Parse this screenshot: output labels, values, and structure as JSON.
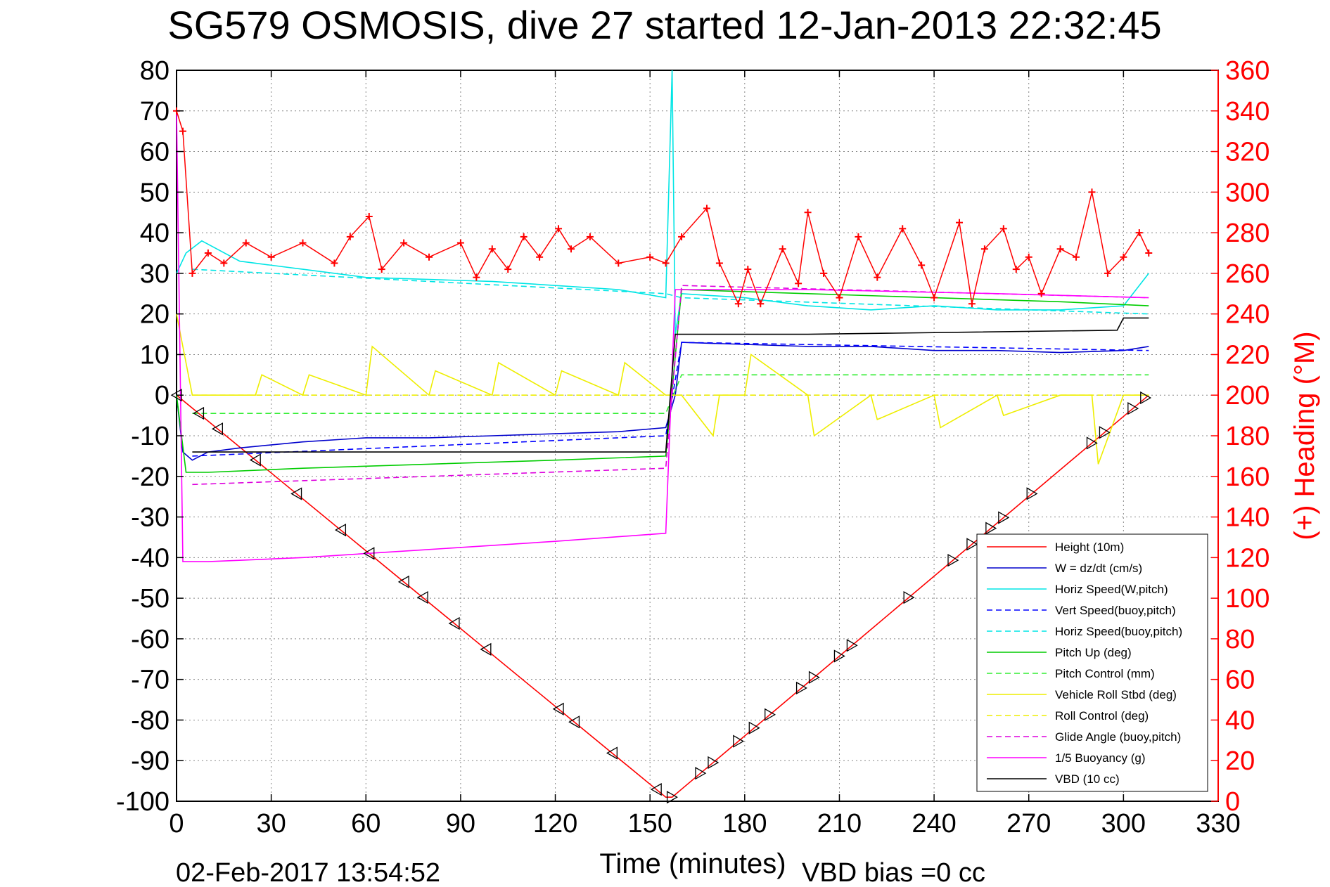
{
  "chart_data": {
    "type": "line",
    "title": "SG579 OSMOSIS, dive 27 started 12-Jan-2013 22:32:45",
    "xlabel": "Time (minutes)",
    "ylabel": "",
    "y2label": "(+) Heading (°M)",
    "xlim": [
      0,
      330
    ],
    "ylim": [
      -100,
      80
    ],
    "y2lim": [
      0,
      360
    ],
    "xticks": [
      0,
      30,
      60,
      90,
      120,
      150,
      180,
      210,
      240,
      270,
      300,
      330
    ],
    "yticks": [
      -100,
      -90,
      -80,
      -70,
      -60,
      -50,
      -40,
      -30,
      -20,
      -10,
      0,
      10,
      20,
      30,
      40,
      50,
      60,
      70,
      80
    ],
    "y2ticks": [
      0,
      20,
      40,
      60,
      80,
      100,
      120,
      140,
      160,
      180,
      200,
      220,
      240,
      260,
      280,
      300,
      320,
      340,
      360
    ],
    "grid": true,
    "legend_position": "bottom-right",
    "timestamp": "02-Feb-2017 13:54:52",
    "vbd_bias": "VBD bias =0 cc",
    "series": [
      {
        "name": "Height (10m)",
        "color": "#ff0000",
        "dash": "solid",
        "x": [
          0,
          155,
          157,
          308
        ],
        "y": [
          0,
          -99,
          -99,
          0
        ]
      },
      {
        "name": "W = dz/dt (cm/s)",
        "color": "#0000cc",
        "dash": "solid",
        "x": [
          0,
          2,
          5,
          10,
          20,
          40,
          60,
          80,
          100,
          120,
          140,
          155,
          158,
          160,
          180,
          200,
          220,
          240,
          260,
          280,
          300,
          308
        ],
        "y": [
          0,
          -14,
          -16,
          -14,
          -13,
          -11.5,
          -10.5,
          -10.5,
          -10,
          -9.5,
          -9,
          -8,
          0,
          13,
          12.5,
          12,
          12,
          11,
          11,
          10.5,
          11,
          12
        ]
      },
      {
        "name": "Horiz Speed(W,pitch)",
        "color": "#00e5e5",
        "dash": "solid",
        "x": [
          0,
          3,
          8,
          20,
          40,
          60,
          80,
          100,
          120,
          140,
          155,
          157,
          158,
          160,
          180,
          200,
          220,
          240,
          260,
          280,
          300,
          308
        ],
        "y": [
          30,
          35,
          38,
          33,
          31,
          29,
          28.5,
          28,
          27,
          26,
          24,
          80,
          15,
          25,
          24,
          22,
          21,
          22,
          21,
          21,
          22,
          30
        ]
      },
      {
        "name": "Vert Speed(buoy,pitch)",
        "color": "#0000ff",
        "dash": "dashed",
        "x": [
          5,
          155,
          160,
          308
        ],
        "y": [
          -15,
          -10,
          13,
          11
        ]
      },
      {
        "name": "Horiz Speed(buoy,pitch)",
        "color": "#00e5e5",
        "dash": "dashed",
        "x": [
          5,
          155,
          160,
          308
        ],
        "y": [
          31,
          25,
          24,
          20
        ]
      },
      {
        "name": "Pitch Up (deg)",
        "color": "#00cc00",
        "dash": "solid",
        "x": [
          0,
          3,
          10,
          40,
          80,
          120,
          155,
          160,
          200,
          240,
          280,
          308
        ],
        "y": [
          0,
          -19,
          -19,
          -18,
          -17,
          -16,
          -15,
          26,
          25,
          24,
          23,
          22
        ]
      },
      {
        "name": "Pitch Control (mm)",
        "color": "#33ee33",
        "dash": "dashed",
        "x": [
          5,
          155,
          160,
          308
        ],
        "y": [
          -4.5,
          -4.5,
          5,
          5
        ]
      },
      {
        "name": "Vehicle Roll Stbd (deg)",
        "color": "#eeee00",
        "dash": "solid",
        "x": [
          0,
          5,
          10,
          25,
          27,
          40,
          42,
          60,
          62,
          80,
          82,
          100,
          102,
          120,
          122,
          140,
          142,
          155,
          160,
          170,
          172,
          180,
          182,
          200,
          202,
          220,
          222,
          240,
          242,
          260,
          262,
          280,
          290,
          292,
          300,
          308
        ],
        "y": [
          20,
          0,
          0,
          0,
          5,
          0,
          5,
          0,
          12,
          0,
          6,
          0,
          8,
          0,
          6,
          0,
          8,
          0,
          0,
          -10,
          0,
          0,
          10,
          0,
          -10,
          0,
          -6,
          0,
          -8,
          0,
          -5,
          0,
          0,
          -17,
          0,
          0
        ]
      },
      {
        "name": "Roll Control (deg)",
        "color": "#eeee00",
        "dash": "dashed",
        "x": [
          5,
          155,
          160,
          308
        ],
        "y": [
          0,
          0,
          0,
          0
        ]
      },
      {
        "name": "Glide Angle (buoy,pitch)",
        "color": "#dd00dd",
        "dash": "dashed",
        "x": [
          5,
          155,
          160,
          308
        ],
        "y": [
          -22,
          -18,
          27,
          24
        ]
      },
      {
        "name": "1/5 Buoyancy (g)",
        "color": "#ff00ff",
        "dash": "solid",
        "x": [
          0,
          2,
          10,
          40,
          80,
          120,
          155,
          158,
          200,
          260,
          308
        ],
        "y": [
          70,
          -41,
          -41,
          -40,
          -38,
          -36,
          -34,
          26,
          26,
          25,
          24
        ]
      },
      {
        "name": "VBD (10 cc)",
        "color": "#000000",
        "dash": "solid",
        "x": [
          5,
          155,
          158,
          200,
          298,
          300,
          308
        ],
        "y": [
          -14,
          -14,
          15,
          15,
          16,
          19,
          19
        ]
      },
      {
        "name": "(+) Heading (°M)",
        "axis": "right",
        "color": "#ff0000",
        "marker": "+",
        "x": [
          0,
          2,
          5,
          10,
          15,
          22,
          30,
          40,
          50,
          55,
          61,
          65,
          72,
          80,
          90,
          95,
          100,
          105,
          110,
          115,
          121,
          125,
          131,
          140,
          150,
          155,
          160,
          168,
          172,
          178,
          181,
          185,
          192,
          197,
          200,
          205,
          210,
          216,
          222,
          230,
          236,
          240,
          248,
          252,
          256,
          262,
          266,
          270,
          274,
          280,
          285,
          290,
          295,
          300,
          305,
          308
        ],
        "y": [
          340,
          330,
          260,
          270,
          265,
          275,
          268,
          275,
          265,
          278,
          288,
          262,
          275,
          268,
          275,
          258,
          272,
          262,
          278,
          268,
          282,
          272,
          278,
          265,
          268,
          265,
          278,
          292,
          265,
          245,
          262,
          245,
          272,
          255,
          290,
          260,
          248,
          278,
          258,
          282,
          264,
          248,
          285,
          245,
          272,
          282,
          262,
          268,
          250,
          272,
          268,
          300,
          260,
          268,
          280,
          270
        ]
      }
    ]
  }
}
